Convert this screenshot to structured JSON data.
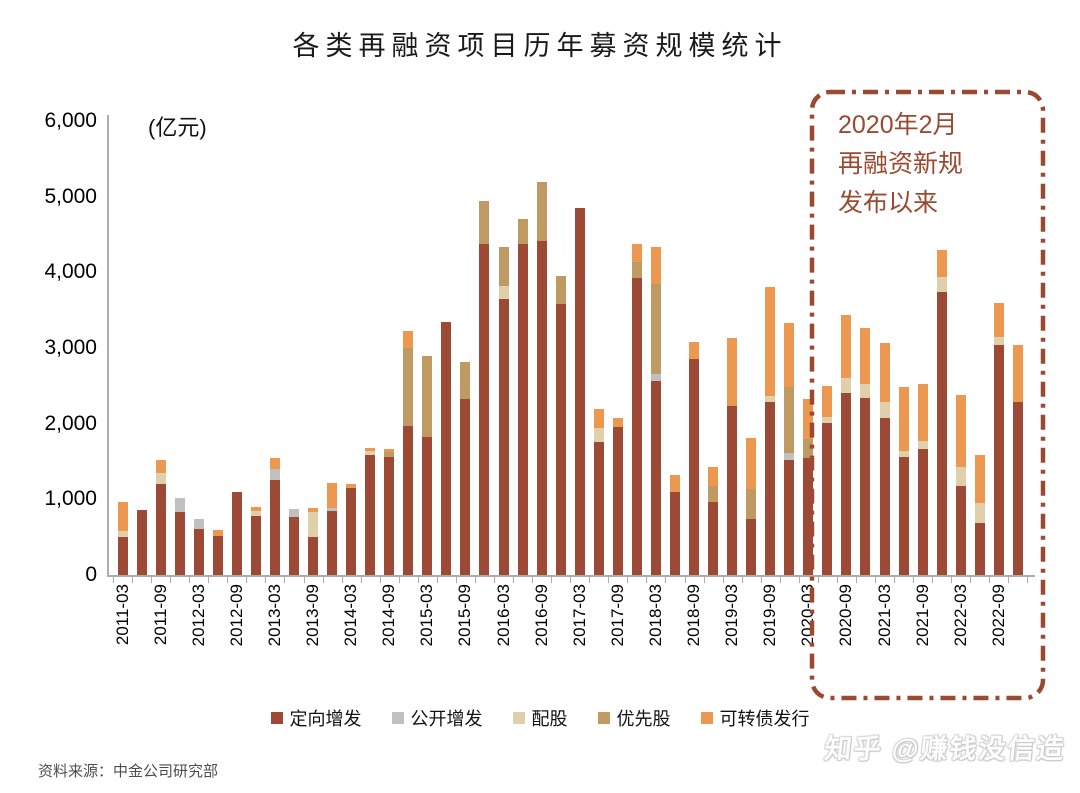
{
  "title": "各类再融资项目历年募资规模统计",
  "y_axis": {
    "unit_label": "(亿元)",
    "ticks": [
      "0",
      "1,000",
      "2,000",
      "3,000",
      "4,000",
      "5,000",
      "6,000"
    ],
    "max": 6000
  },
  "chart_data": {
    "type": "bar",
    "stacked": true,
    "grid": false,
    "legend_position": "bottom",
    "ylim": [
      0,
      6000
    ],
    "ylabel": "亿元",
    "categories": [
      "2011-03",
      "2011-06",
      "2011-09",
      "2011-12",
      "2012-03",
      "2012-06",
      "2012-09",
      "2012-12",
      "2013-03",
      "2013-06",
      "2013-09",
      "2013-12",
      "2014-03",
      "2014-06",
      "2014-09",
      "2014-12",
      "2015-03",
      "2015-06",
      "2015-09",
      "2015-12",
      "2016-03",
      "2016-06",
      "2016-09",
      "2016-12",
      "2017-03",
      "2017-06",
      "2017-09",
      "2017-12",
      "2018-03",
      "2018-06",
      "2018-09",
      "2018-12",
      "2019-03",
      "2019-06",
      "2019-09",
      "2019-12",
      "2020-03",
      "2020-06",
      "2020-09",
      "2020-12",
      "2021-03",
      "2021-06",
      "2021-09",
      "2021-12",
      "2022-03",
      "2022-06",
      "2022-09",
      "2022-12"
    ],
    "x_tick_labels": [
      "2011-03",
      "2011-09",
      "2012-03",
      "2012-09",
      "2013-03",
      "2013-09",
      "2014-03",
      "2014-09",
      "2015-03",
      "2015-09",
      "2016-03",
      "2016-09",
      "2017-03",
      "2017-09",
      "2018-03",
      "2018-09",
      "2019-03",
      "2019-09",
      "2020-03",
      "2020-09",
      "2021-03",
      "2021-09",
      "2022-03",
      "2022-09"
    ],
    "series": [
      {
        "name": "定向增发",
        "color": "#9C4A36",
        "values": [
          500,
          860,
          1200,
          830,
          610,
          520,
          1100,
          780,
          1250,
          770,
          500,
          850,
          1150,
          1580,
          1560,
          1970,
          1830,
          3340,
          2330,
          4370,
          3650,
          4380,
          4410,
          3580,
          4850,
          1760,
          1950,
          3930,
          2560,
          1100,
          2850,
          970,
          2230,
          740,
          2280,
          1520,
          1550,
          2010,
          2410,
          2345,
          2080,
          1565,
          1670,
          3740,
          1180,
          690,
          3035,
          2280
        ]
      },
      {
        "name": "公开增发",
        "color": "#C0C0C0",
        "values": [
          0,
          0,
          0,
          185,
          130,
          0,
          0,
          0,
          150,
          105,
          0,
          40,
          0,
          0,
          0,
          0,
          0,
          0,
          0,
          0,
          0,
          0,
          0,
          0,
          0,
          0,
          0,
          0,
          90,
          0,
          0,
          0,
          0,
          0,
          0,
          95,
          0,
          0,
          0,
          0,
          0,
          0,
          0,
          0,
          0,
          0,
          0,
          0
        ]
      },
      {
        "name": "配股",
        "color": "#DFD0AB",
        "values": [
          80,
          0,
          150,
          0,
          0,
          0,
          0,
          60,
          0,
          0,
          330,
          0,
          0,
          60,
          0,
          0,
          0,
          0,
          0,
          0,
          170,
          0,
          0,
          0,
          0,
          180,
          0,
          0,
          0,
          0,
          0,
          0,
          0,
          0,
          80,
          0,
          0,
          80,
          200,
          185,
          200,
          80,
          95,
          195,
          250,
          265,
          105,
          0
        ]
      },
      {
        "name": "优先股",
        "color": "#BF9A62",
        "values": [
          0,
          0,
          0,
          0,
          0,
          0,
          0,
          0,
          0,
          0,
          0,
          0,
          0,
          0,
          60,
          1030,
          1060,
          0,
          490,
          570,
          510,
          320,
          790,
          370,
          0,
          0,
          0,
          200,
          1190,
          0,
          0,
          200,
          0,
          400,
          0,
          875,
          250,
          0,
          0,
          0,
          0,
          0,
          0,
          0,
          0,
          0,
          0,
          0
        ]
      },
      {
        "name": "可转债发行",
        "color": "#EC9851",
        "values": [
          390,
          0,
          170,
          0,
          0,
          70,
          0,
          60,
          150,
          0,
          60,
          330,
          50,
          40,
          50,
          220,
          0,
          0,
          0,
          0,
          0,
          0,
          0,
          0,
          0,
          260,
          120,
          250,
          490,
          225,
          225,
          260,
          900,
          675,
          1440,
          840,
          520,
          410,
          830,
          740,
          780,
          845,
          755,
          360,
          955,
          635,
          450,
          755
        ]
      }
    ]
  },
  "annotation": {
    "lines": [
      "2020年2月",
      "再融资新规",
      "发布以来"
    ],
    "color": "#9B4A32"
  },
  "source": "资料来源：中金公司研究部",
  "watermark": "知乎 @赚钱没信造"
}
